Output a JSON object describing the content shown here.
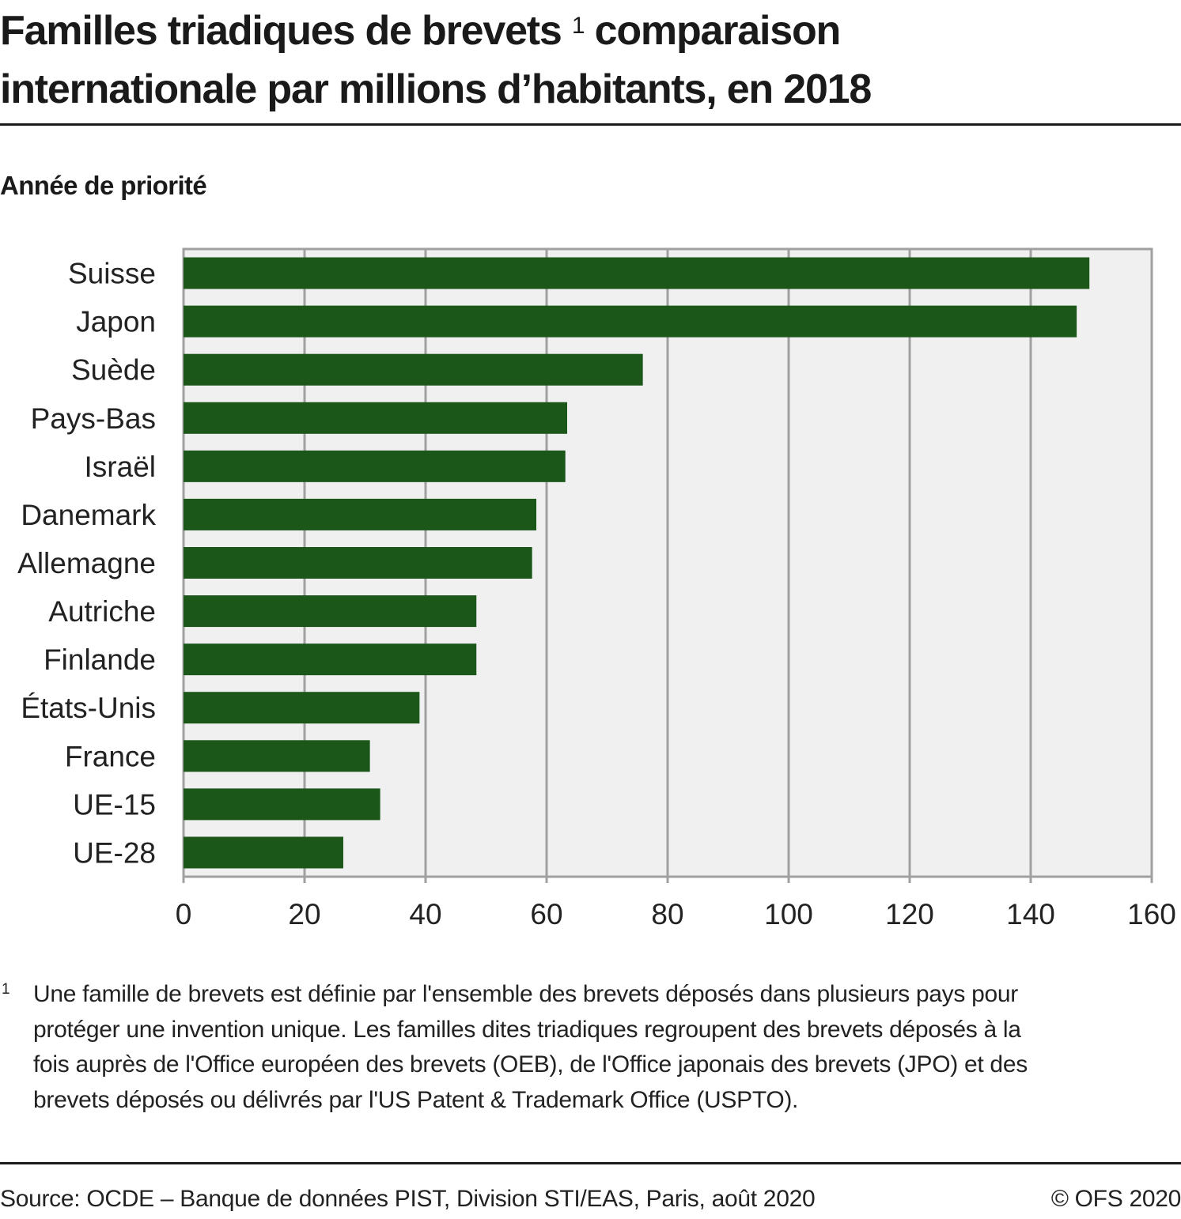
{
  "header": {
    "title_part1": "Familles triadiques de brevets",
    "title_footnote_mark": "1",
    "title_part2": "comparaison",
    "title_line2": "internationale par millions d’habitants, en 2018",
    "subtitle": "Année de priorité"
  },
  "chart_data": {
    "type": "bar",
    "orientation": "horizontal",
    "title": "Familles triadiques de brevets comparaison internationale par millions d’habitants, en 2018",
    "subtitle": "Année de priorité",
    "xlabel": "",
    "ylabel": "",
    "categories": [
      "Suisse",
      "Japon",
      "Suède",
      "Pays-Bas",
      "Israël",
      "Danemark",
      "Allemagne",
      "Autriche",
      "Finlande",
      "États-Unis",
      "France",
      "UE-15",
      "UE-28"
    ],
    "values": [
      149.7,
      147.6,
      75.9,
      63.4,
      63.1,
      58.3,
      57.6,
      48.4,
      48.4,
      39.0,
      30.8,
      32.5,
      26.4
    ],
    "xlim": [
      0,
      160
    ],
    "xticks": [
      "0",
      "20",
      "40",
      "60",
      "80",
      "100",
      "120",
      "140",
      "160"
    ],
    "grid": true,
    "colors": {
      "bar": "#1a5719",
      "plot_bg": "#f0f0f0",
      "grid": "#a0a0a0"
    }
  },
  "footnote": {
    "mark": "1",
    "lines": [
      "Une famille de brevets est définie par l'ensemble des brevets déposés dans plusieurs pays pour",
      "protéger une invention unique. Les familles dites triadiques regroupent des brevets déposés à la",
      "fois auprès de l'Office européen des brevets (OEB), de l'Office japonais des brevets (JPO) et des",
      "brevets déposés ou délivrés par l'US Patent & Trademark Office (USPTO)."
    ]
  },
  "footer": {
    "source": "Source: OCDE – Banque de données PIST, Division STI/EAS, Paris, août 2020",
    "copyright": "© OFS 2020"
  }
}
